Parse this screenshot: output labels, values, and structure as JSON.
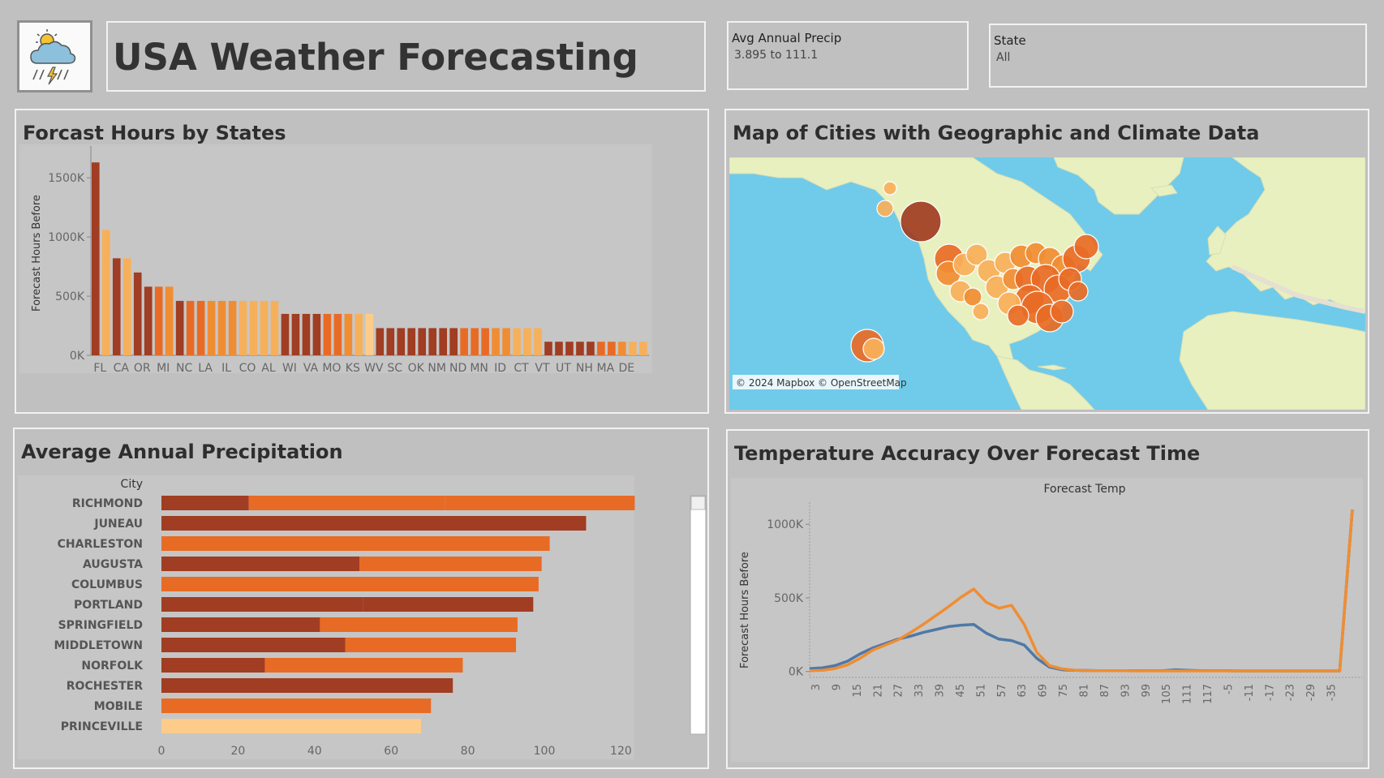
{
  "header": {
    "title": "USA Weather Forecasting",
    "logo_icon": "weather-storm-icon"
  },
  "filters": {
    "precip_label": "Avg Annual Precip",
    "precip_value": "3.895 to 111.1",
    "state_label": "State",
    "state_value": "All"
  },
  "colors": {
    "dark": "#a03d22",
    "mid": "#e86b25",
    "orange": "#f08d32",
    "light": "#f7b05a",
    "pale": "#fdcc8a",
    "blue": "#4e79a7",
    "ocean": "#6fcbe9",
    "land": "#e8f0c0"
  },
  "panels": {
    "states_title": "Forcast Hours by States",
    "map_title": "Map of Cities with Geographic and Climate Data",
    "map_credit": "© 2024 Mapbox © OpenStreetMap",
    "precip_title": "Average Annual Precipitation",
    "temp_title": "Temperature Accuracy Over Forecast Time"
  },
  "chart_data": [
    {
      "type": "bar",
      "title": "Forcast Hours by States",
      "ylabel": "Forecast Hours Before",
      "ylim": [
        0,
        1700000
      ],
      "yticks": [
        "0K",
        "500K",
        "1000K",
        "1500K"
      ],
      "ytick_values": [
        0,
        500000,
        1000000,
        1500000
      ],
      "tick_labels": [
        "FL",
        "CA",
        "OR",
        "MI",
        "NC",
        "LA",
        "IL",
        "CO",
        "AL",
        "WI",
        "VA",
        "MO",
        "KS",
        "WV",
        "SC",
        "OK",
        "NM",
        "ND",
        "MN",
        "ID",
        "CT",
        "VT",
        "UT",
        "NH",
        "MA",
        "DE"
      ],
      "values": [
        1630000,
        1060000,
        820000,
        820000,
        700000,
        580000,
        580000,
        580000,
        460000,
        460000,
        460000,
        460000,
        460000,
        460000,
        460000,
        460000,
        460000,
        460000,
        350000,
        350000,
        350000,
        350000,
        350000,
        350000,
        350000,
        350000,
        350000,
        230000,
        230000,
        230000,
        230000,
        230000,
        230000,
        230000,
        230000,
        230000,
        230000,
        230000,
        230000,
        230000,
        230000,
        230000,
        230000,
        115000,
        115000,
        115000,
        115000,
        115000,
        115000,
        115000,
        115000,
        115000,
        115000
      ],
      "bar_color_keys": [
        "dark",
        "light",
        "dark",
        "light",
        "dark",
        "dark",
        "mid",
        "orange",
        "dark",
        "mid",
        "mid",
        "orange",
        "orange",
        "orange",
        "light",
        "light",
        "light",
        "light",
        "dark",
        "dark",
        "dark",
        "dark",
        "mid",
        "mid",
        "orange",
        "light",
        "pale",
        "dark",
        "dark",
        "dark",
        "dark",
        "dark",
        "dark",
        "dark",
        "dark",
        "mid",
        "mid",
        "mid",
        "orange",
        "orange",
        "light",
        "light",
        "light",
        "dark",
        "dark",
        "dark",
        "dark",
        "dark",
        "mid",
        "mid",
        "orange",
        "light",
        "light"
      ]
    },
    {
      "type": "bar",
      "orientation": "horizontal",
      "title": "Average Annual Precipitation",
      "row_header": "City",
      "categories": [
        "RICHMOND",
        "JUNEAU",
        "CHARLESTON",
        "AUGUSTA",
        "COLUMBUS",
        "PORTLAND",
        "SPRINGFIELD",
        "MIDDLETOWN",
        "NORFOLK",
        "ROCHESTER",
        "MOBILE",
        "PRINCEVILLE"
      ],
      "segments": [
        [
          [
            22.8,
            "dark"
          ],
          [
            51.3,
            "mid"
          ],
          [
            49.5,
            "mid"
          ]
        ],
        [
          [
            110.9,
            "dark"
          ]
        ],
        [
          [
            101.4,
            "mid"
          ]
        ],
        [
          [
            51.7,
            "dark"
          ],
          [
            47.6,
            "mid"
          ]
        ],
        [
          [
            98.5,
            "mid"
          ]
        ],
        [
          [
            52.7,
            "dark"
          ],
          [
            44.4,
            "dark"
          ]
        ],
        [
          [
            41.4,
            "dark"
          ],
          [
            51.6,
            "mid"
          ]
        ],
        [
          [
            48.0,
            "dark"
          ],
          [
            44.6,
            "mid"
          ]
        ],
        [
          [
            27.0,
            "dark"
          ],
          [
            51.7,
            "mid"
          ]
        ],
        [
          [
            76.1,
            "dark"
          ]
        ],
        [
          [
            70.4,
            "mid"
          ]
        ],
        [
          [
            67.8,
            "pale"
          ]
        ]
      ],
      "totals": [
        123.6,
        110.9,
        101.4,
        99.3,
        98.5,
        97.1,
        93.0,
        92.6,
        78.7,
        76.1,
        70.4,
        67.8
      ],
      "xlim": [
        0,
        130
      ],
      "xticks": [
        "0",
        "20",
        "40",
        "60",
        "80",
        "100",
        "120"
      ],
      "xtick_values": [
        0,
        20,
        40,
        60,
        80,
        100,
        120
      ]
    },
    {
      "type": "line",
      "title": "Temperature Accuracy Over Forecast Time",
      "column_header": "Forecast Temp",
      "ylabel": "Forecast Hours Before",
      "ylim": [
        -40000,
        1150000
      ],
      "yticks": [
        "0K",
        "500K",
        "1000K"
      ],
      "ytick_values": [
        0,
        500000,
        1000000
      ],
      "xticks": [
        "3",
        "9",
        "15",
        "21",
        "27",
        "33",
        "39",
        "45",
        "51",
        "57",
        "63",
        "69",
        "75",
        "81",
        "87",
        "93",
        "99",
        "105",
        "111",
        "117",
        "-5",
        "-11",
        "-17",
        "-23",
        "-29",
        "-35"
      ],
      "series": [
        {
          "color_key": "blue",
          "points": [
            [
              0,
              20000
            ],
            [
              1,
              25000
            ],
            [
              2,
              40000
            ],
            [
              3,
              70000
            ],
            [
              4,
              120000
            ],
            [
              5,
              160000
            ],
            [
              6,
              190000
            ],
            [
              7,
              220000
            ],
            [
              8,
              240000
            ],
            [
              9,
              265000
            ],
            [
              10,
              285000
            ],
            [
              11,
              305000
            ],
            [
              12,
              315000
            ],
            [
              13,
              320000
            ],
            [
              14,
              260000
            ],
            [
              15,
              220000
            ],
            [
              16,
              210000
            ],
            [
              17,
              180000
            ],
            [
              18,
              90000
            ],
            [
              19,
              30000
            ],
            [
              20,
              12000
            ],
            [
              21,
              8000
            ],
            [
              22,
              7000
            ],
            [
              23,
              6000
            ],
            [
              24,
              6000
            ],
            [
              25,
              6000
            ],
            [
              26,
              5000
            ],
            [
              27,
              5000
            ],
            [
              28,
              5000
            ],
            [
              29,
              12000
            ],
            [
              30,
              8000
            ],
            [
              31,
              6000
            ],
            [
              32,
              5000
            ],
            [
              33,
              5000
            ],
            [
              34,
              4000
            ],
            [
              35,
              4000
            ],
            [
              36,
              4000
            ],
            [
              37,
              4000
            ],
            [
              38,
              4000
            ],
            [
              39,
              4000
            ],
            [
              40,
              4000
            ],
            [
              41,
              4000
            ],
            [
              42,
              4000
            ],
            [
              43,
              1100000
            ]
          ]
        },
        {
          "color_key": "orange",
          "points": [
            [
              0,
              5000
            ],
            [
              1,
              8000
            ],
            [
              2,
              20000
            ],
            [
              3,
              45000
            ],
            [
              4,
              90000
            ],
            [
              5,
              145000
            ],
            [
              6,
              180000
            ],
            [
              7,
              215000
            ],
            [
              8,
              265000
            ],
            [
              9,
              320000
            ],
            [
              10,
              380000
            ],
            [
              11,
              440000
            ],
            [
              12,
              505000
            ],
            [
              13,
              560000
            ],
            [
              14,
              470000
            ],
            [
              15,
              430000
            ],
            [
              16,
              450000
            ],
            [
              17,
              320000
            ],
            [
              18,
              130000
            ],
            [
              19,
              40000
            ],
            [
              20,
              18000
            ],
            [
              21,
              9000
            ],
            [
              22,
              6000
            ],
            [
              23,
              5000
            ],
            [
              24,
              5000
            ],
            [
              25,
              5000
            ],
            [
              26,
              4000
            ],
            [
              27,
              4000
            ],
            [
              28,
              4000
            ],
            [
              29,
              4000
            ],
            [
              30,
              4000
            ],
            [
              31,
              4000
            ],
            [
              32,
              4000
            ],
            [
              33,
              4000
            ],
            [
              34,
              4000
            ],
            [
              35,
              4000
            ],
            [
              36,
              4000
            ],
            [
              37,
              4000
            ],
            [
              38,
              4000
            ],
            [
              39,
              4000
            ],
            [
              40,
              4000
            ],
            [
              41,
              4000
            ],
            [
              42,
              4000
            ],
            [
              43,
              1100000
            ]
          ]
        }
      ]
    }
  ]
}
